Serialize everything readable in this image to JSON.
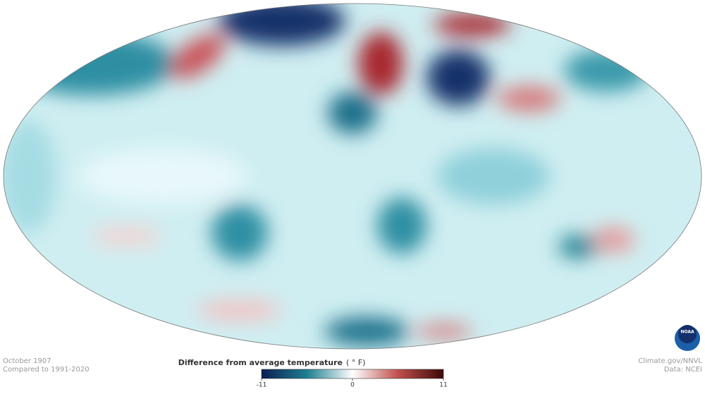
{
  "map": {
    "date": "October 1907",
    "baseline": "Compared to 1991-2020"
  },
  "legend": {
    "title": "Difference from average temperature",
    "unit": "( ° F)",
    "min": -11,
    "max": 11,
    "ticks": [
      -11,
      0,
      11
    ]
  },
  "credits": {
    "source": "Climate.gov/NNVL",
    "data": "Data: NCEI",
    "logo": "NOAA"
  }
}
